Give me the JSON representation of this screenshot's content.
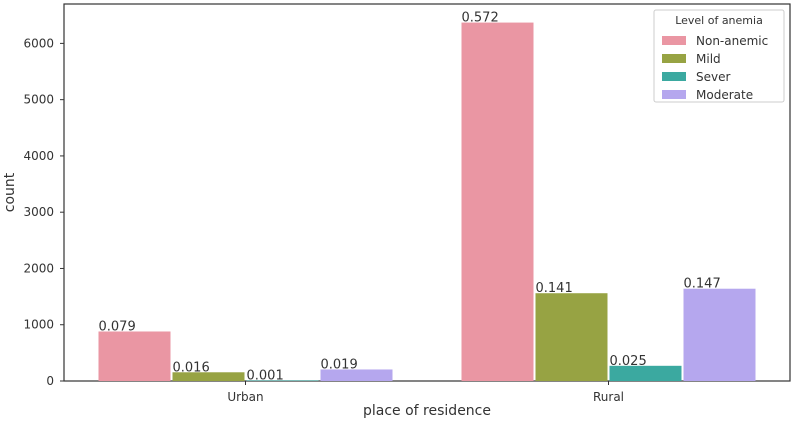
{
  "chart_data": {
    "type": "bar",
    "categories": [
      "Urban",
      "Rural"
    ],
    "xlabel": "place of residence",
    "ylabel": "count",
    "ylim": [
      0,
      6700
    ],
    "yticks": [
      0,
      1000,
      2000,
      3000,
      4000,
      5000,
      6000
    ],
    "grid": false,
    "legend": {
      "title": "Level of anemia",
      "placement": "top-right"
    },
    "series": [
      {
        "name": "Non-anemic",
        "color": "#ea96a3",
        "values": [
          880,
          6370
        ],
        "labels": [
          "0.079",
          "0.572"
        ]
      },
      {
        "name": "Mild",
        "color": "#97a343",
        "values": [
          155,
          1560
        ],
        "labels": [
          "0.016",
          "0.141"
        ]
      },
      {
        "name": "Sever",
        "color": "#3ba9a0",
        "values": [
          10,
          270
        ],
        "labels": [
          "0.001",
          "0.025"
        ]
      },
      {
        "name": "Moderate",
        "color": "#b5a7ee",
        "values": [
          205,
          1640
        ],
        "labels": [
          "0.019",
          "0.147"
        ]
      }
    ]
  }
}
